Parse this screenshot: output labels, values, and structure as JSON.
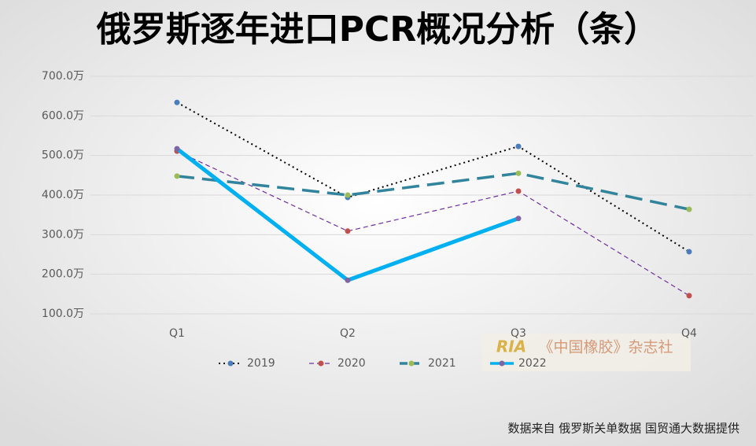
{
  "chart_data": {
    "type": "line",
    "title": "俄罗斯逐年进口PCR概况分析（条）",
    "categories": [
      "Q1",
      "Q2",
      "Q3",
      "Q4"
    ],
    "series": [
      {
        "name": "2019",
        "color": "#000000",
        "marker_color": "#4a7ebb",
        "line_style": "dotted",
        "values": [
          634,
          394,
          523,
          257
        ]
      },
      {
        "name": "2020",
        "color": "#7030a0",
        "marker_color": "#c0504d",
        "line_style": "dashed",
        "values": [
          511,
          309,
          410,
          146
        ]
      },
      {
        "name": "2021",
        "color": "#31849b",
        "marker_color": "#9bbb59",
        "line_style": "long-dashed",
        "values": [
          448,
          400,
          455,
          364
        ]
      },
      {
        "name": "2022",
        "color": "#00b0f0",
        "marker_color": "#8064a2",
        "line_style": "solid-thick",
        "values": [
          517,
          185,
          341,
          null
        ]
      }
    ],
    "ylim": [
      100,
      700
    ],
    "yticks": [
      {
        "value": 100,
        "label": "100.0万"
      },
      {
        "value": 200,
        "label": "200.0万"
      },
      {
        "value": 300,
        "label": "300.0万"
      },
      {
        "value": 400,
        "label": "400.0万"
      },
      {
        "value": 500,
        "label": "500.0万"
      },
      {
        "value": 600,
        "label": "600.0万"
      },
      {
        "value": 700,
        "label": "700.0万"
      }
    ],
    "grid": true,
    "legend": "bottom",
    "watermark": "《中国橡胶》杂志社",
    "watermark_logo": "RIA",
    "source": "数据来自 俄罗斯关单数据 国贸通大数据提供"
  }
}
